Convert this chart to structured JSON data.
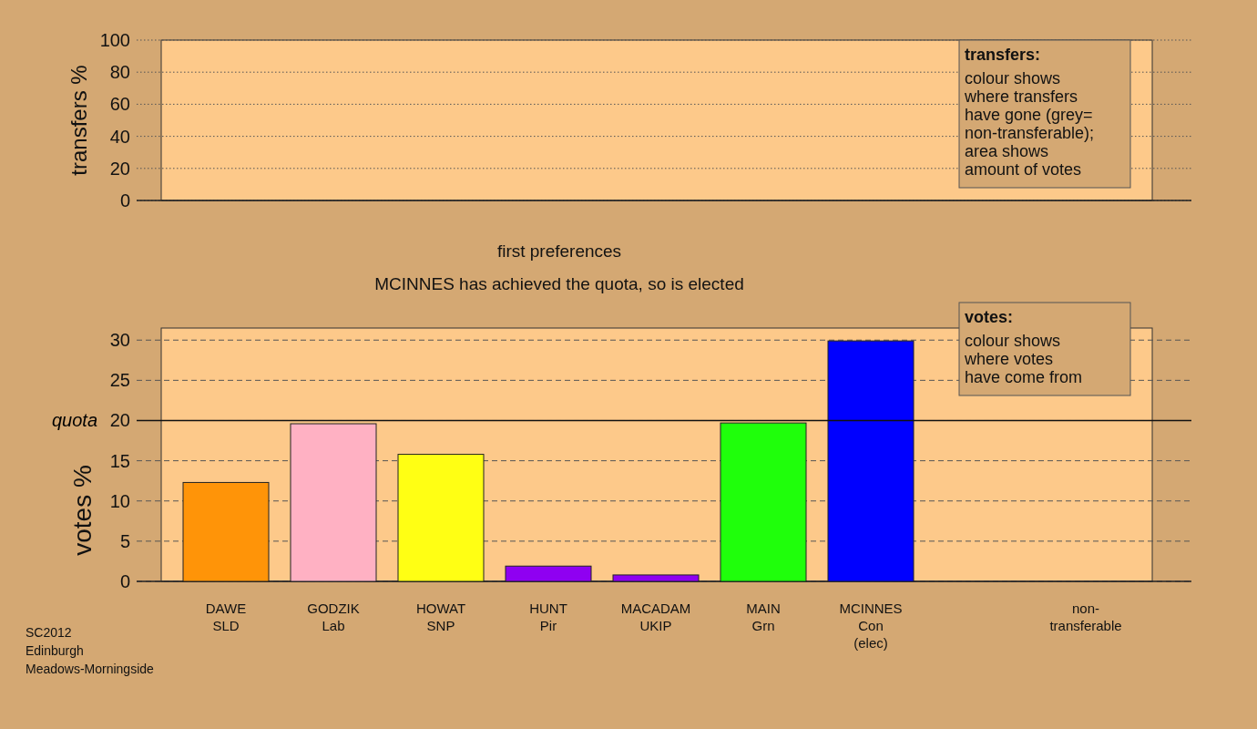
{
  "chart_data": [
    {
      "type": "bar",
      "ylabel": "transfers %",
      "categories": [
        null,
        null,
        null,
        null,
        null,
        null,
        null,
        null,
        null
      ],
      "values": [
        0,
        0,
        0,
        0,
        0,
        0,
        0,
        0,
        0
      ],
      "ylim": [
        0,
        100
      ],
      "yticks": [
        0,
        20,
        40,
        60,
        80,
        100
      ],
      "grid": "y",
      "tick_labels": "y",
      "annotations": [
        "transfers:\ncolour shows\nwhere transfers\nhave gone (grey=\nnon-transferable);\narea shows\namount of votes"
      ]
    },
    {
      "type": "bar",
      "title": "first preferences",
      "subtitle": "MCINNES has achieved the quota, so is elected",
      "ylabel": "votes %",
      "categories": [
        "DAWE\nSLD",
        "GODZIK\nLab",
        "HOWAT\nSNP",
        "HUNT\nPir",
        "MACADAM\nUKIP",
        "MAIN\nGrn",
        "MCINNES\nCon\n(elec)",
        null,
        "non-\ntransferable"
      ],
      "values": [
        12.3,
        19.6,
        15.8,
        1.9,
        0.8,
        19.7,
        29.9,
        null,
        null
      ],
      "colors": [
        "#ff9408",
        "#ffb1c3",
        "#ffff14",
        "#8f00f1",
        "#8f00f1",
        "#1fff0b",
        "#0000ff",
        null,
        null
      ],
      "ylim": [
        0,
        31.5
      ],
      "yticks": [
        0,
        5,
        10,
        15,
        20,
        25,
        30
      ],
      "grid": "y",
      "ref_lines": [
        {
          "axis": "y",
          "value": 20,
          "label": "quota"
        }
      ],
      "annotations": [
        "votes:\ncolour shows\nwhere votes\nhave come from",
        "SC2012\nEdinburgh\nMeadows-Morningside"
      ]
    }
  ]
}
